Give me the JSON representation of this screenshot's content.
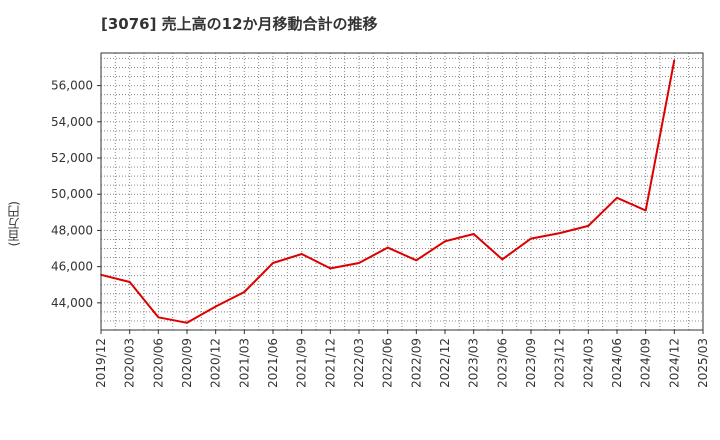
{
  "chart_data": {
    "type": "line",
    "title": "[3076]  売上高の12か月移動合計の推移",
    "ylabel": "(百万円)",
    "xlabel": "",
    "x": [
      "2019/12",
      "2020/03",
      "2020/06",
      "2020/09",
      "2020/12",
      "2021/03",
      "2021/06",
      "2021/09",
      "2021/12",
      "2022/03",
      "2022/06",
      "2022/09",
      "2022/12",
      "2023/03",
      "2023/06",
      "2023/09",
      "2023/12",
      "2024/03",
      "2024/06",
      "2024/09",
      "2024/12",
      "2025/03"
    ],
    "series": [
      {
        "name": "売上高の12か月移動合計",
        "color": "#dd0000",
        "values": [
          45550,
          45150,
          43200,
          42900,
          43800,
          44600,
          46200,
          46700,
          45900,
          46200,
          47050,
          46350,
          47400,
          47800,
          46400,
          47550,
          47850,
          48250,
          49800,
          49100,
          57400,
          null
        ]
      }
    ],
    "yticks": [
      44000,
      46000,
      48000,
      50000,
      52000,
      54000,
      56000
    ],
    "ytick_labels": [
      "44,000",
      "46,000",
      "48,000",
      "50,000",
      "52,000",
      "54,000",
      "56,000"
    ],
    "ylim": [
      42500,
      57800
    ],
    "grid": true
  }
}
